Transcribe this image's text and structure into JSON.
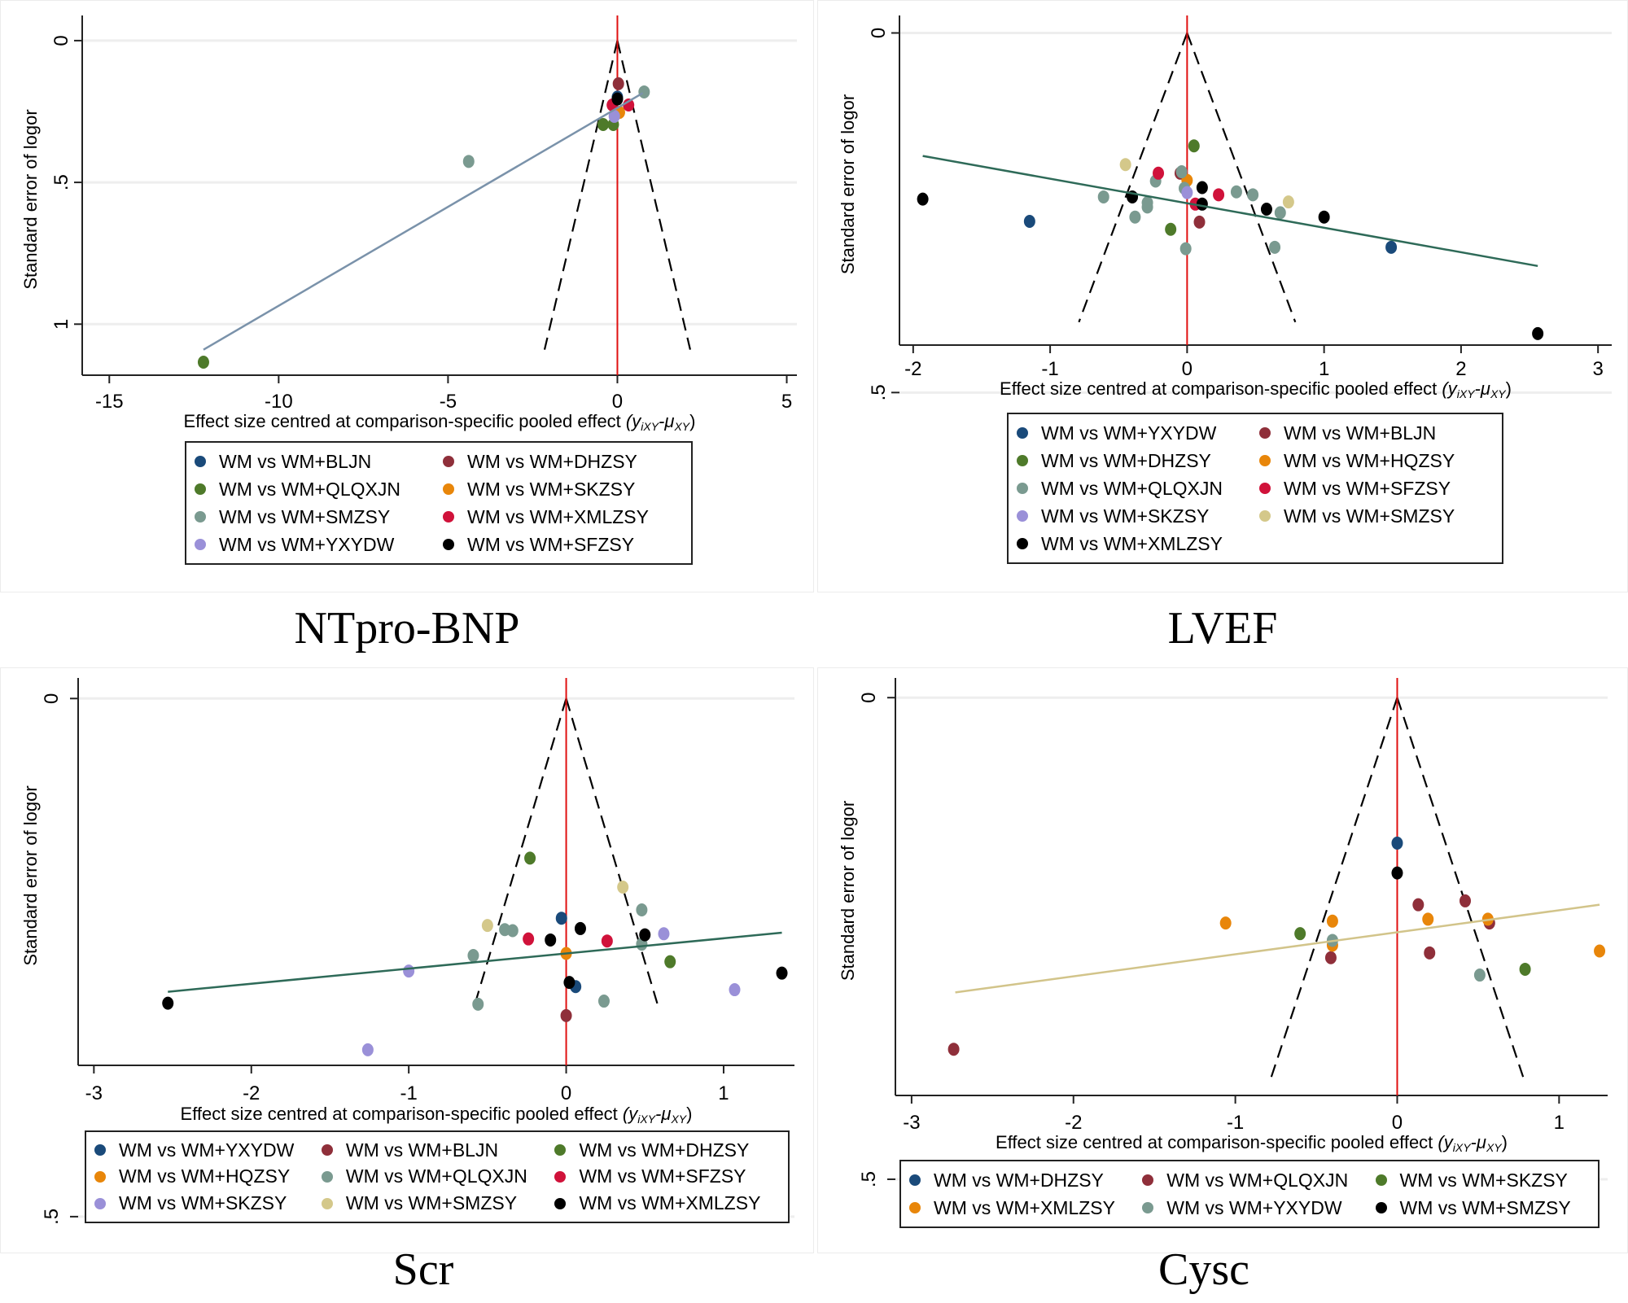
{
  "figure": {
    "captions": [
      "NTpro-BNP",
      "LVEF",
      "Scr",
      "Cysc"
    ]
  },
  "colors": {
    "navy": "#1a4a7a",
    "maroon": "#8f2f3a",
    "olive": "#4e7a2a",
    "orange": "#e8860a",
    "gray": "#7a9a90",
    "crimson": "#d0123a",
    "lavender": "#9a90d8",
    "black": "#000000",
    "khaki": "#d4c88a",
    "null_line": "#e01010",
    "reg_blue": "#7a92aa",
    "reg_green": "#2e6a58",
    "reg_khaki": "#d2c48a"
  },
  "chart_data": [
    {
      "id": "ntprobnp",
      "type": "scatter",
      "title": "NTpro-BNP",
      "xlabel": "Effect size centred at comparison-specific pooled effect",
      "xlabel_math": "(y",
      "xlabel_sub1": "iXY",
      "xlabel_mid": "-μ",
      "xlabel_sub2": "XY",
      "xlabel_end": ")",
      "ylabel": "Standard error of logor",
      "xlim": [
        -15.8,
        5.3
      ],
      "ylim": [
        -0.06,
        1.18
      ],
      "y_reversed": true,
      "xticks": [
        -15,
        -10,
        -5,
        0,
        5
      ],
      "xtick_labels": [
        "-15",
        "-10",
        "-5",
        "0",
        "5"
      ],
      "yticks": [
        0,
        0.5,
        1
      ],
      "ytick_labels": [
        "0",
        ".5",
        "1"
      ],
      "grid": true,
      "null_line_x": 0,
      "funnel": {
        "apex": [
          0,
          0
        ],
        "bottom_y": 1.09,
        "half_width": 2.15
      },
      "regression": {
        "x": [
          -12.22,
          0.75
        ],
        "y": [
          1.09,
          0.185
        ],
        "color_key": "reg_blue"
      },
      "legend_columns": 2,
      "legend_placement": "bottom",
      "series": [
        {
          "name": "WM vs WM+BLJN",
          "color_key": "navy",
          "points": [
            [
              0.0,
              0.199
            ]
          ]
        },
        {
          "name": "WM vs WM+DHZSY",
          "color_key": "maroon",
          "points": [
            [
              0.03,
              0.152
            ]
          ]
        },
        {
          "name": "WM vs WM+QLQXJN",
          "color_key": "olive",
          "points": [
            [
              -12.22,
              1.134
            ],
            [
              -0.42,
              0.296
            ],
            [
              -0.12,
              0.296
            ]
          ]
        },
        {
          "name": "WM vs WM+SKZSY",
          "color_key": "orange",
          "points": [
            [
              0.06,
              0.253
            ]
          ]
        },
        {
          "name": "WM vs WM+SMZSY",
          "color_key": "gray",
          "points": [
            [
              -4.39,
              0.426
            ],
            [
              0.79,
              0.181
            ]
          ]
        },
        {
          "name": "WM vs WM+XMLZSY",
          "color_key": "crimson",
          "points": [
            [
              -0.15,
              0.227
            ],
            [
              0.33,
              0.227
            ]
          ]
        },
        {
          "name": "WM vs WM+YXYDW",
          "color_key": "lavender",
          "points": [
            [
              -0.09,
              0.267
            ]
          ]
        },
        {
          "name": "WM vs WM+SFZSY",
          "color_key": "black",
          "points": [
            [
              0.0,
              0.206
            ]
          ]
        }
      ]
    },
    {
      "id": "lvef",
      "type": "scatter",
      "title": "LVEF",
      "xlabel": "Effect size centred at comparison-specific pooled effect",
      "xlabel_math": "(y",
      "xlabel_sub1": "iXY",
      "xlabel_mid": "-μ",
      "xlabel_sub2": "XY",
      "xlabel_end": ")",
      "ylabel": "Standard error of logor",
      "xlim": [
        -2.1,
        3.1
      ],
      "ylim": [
        -0.013,
        0.434
      ],
      "y_reversed": true,
      "xticks": [
        -2,
        -1,
        0,
        1,
        2,
        3
      ],
      "xtick_labels": [
        "-2",
        "-1",
        "0",
        "1",
        "2",
        "3"
      ],
      "yticks": [
        0,
        0.5
      ],
      "ytick_labels": [
        "0",
        ".5"
      ],
      "grid": true,
      "null_line_x": 0,
      "funnel": {
        "apex": [
          0,
          0
        ],
        "bottom_y": 0.402,
        "half_width": 0.79
      },
      "regression": {
        "x": [
          -1.93,
          2.56
        ],
        "y": [
          0.171,
          0.324
        ],
        "color_key": "reg_green"
      },
      "legend_columns": 2,
      "legend_placement": "bottom",
      "series": [
        {
          "name": "WM vs WM+YXYDW",
          "color_key": "navy",
          "points": [
            [
              -1.15,
              0.262
            ],
            [
              1.49,
              0.298
            ]
          ]
        },
        {
          "name": "WM vs WM+BLJN",
          "color_key": "maroon",
          "points": [
            [
              -0.05,
              0.195
            ],
            [
              0.09,
              0.263
            ]
          ]
        },
        {
          "name": "WM vs WM+DHZSY",
          "color_key": "olive",
          "points": [
            [
              0.05,
              0.157
            ],
            [
              -0.12,
              0.273
            ]
          ]
        },
        {
          "name": "WM vs WM+HQZSY",
          "color_key": "orange",
          "points": [
            [
              0.0,
              0.205
            ]
          ]
        },
        {
          "name": "WM vs WM+QLQXJN",
          "color_key": "gray",
          "points": [
            [
              -0.04,
              0.193
            ],
            [
              -0.23,
              0.206
            ],
            [
              -0.61,
              0.228
            ],
            [
              -0.29,
              0.236
            ],
            [
              -0.29,
              0.242
            ],
            [
              -0.38,
              0.256
            ],
            [
              -0.02,
              0.216
            ],
            [
              0.36,
              0.221
            ],
            [
              0.48,
              0.225
            ],
            [
              0.68,
              0.25
            ],
            [
              -0.01,
              0.3
            ],
            [
              0.64,
              0.298
            ]
          ]
        },
        {
          "name": "WM vs WM+SFZSY",
          "color_key": "crimson",
          "points": [
            [
              -0.21,
              0.195
            ],
            [
              0.23,
              0.225
            ],
            [
              0.06,
              0.238
            ]
          ]
        },
        {
          "name": "WM vs WM+SKZSY",
          "color_key": "lavender",
          "points": [
            [
              0.0,
              0.222
            ]
          ]
        },
        {
          "name": "WM vs WM+SMZSY",
          "color_key": "khaki",
          "points": [
            [
              -0.45,
              0.183
            ],
            [
              0.74,
              0.235
            ]
          ]
        },
        {
          "name": "WM vs WM+XMLZSY",
          "color_key": "black",
          "points": [
            [
              -1.93,
              0.231
            ],
            [
              -0.4,
              0.228
            ],
            [
              0.11,
              0.215
            ],
            [
              0.11,
              0.238
            ],
            [
              0.58,
              0.245
            ],
            [
              1.0,
              0.256
            ],
            [
              2.56,
              0.418
            ]
          ]
        }
      ]
    },
    {
      "id": "scr",
      "type": "scatter",
      "title": "Scr",
      "xlabel": "Effect size centred at comparison-specific pooled effect",
      "xlabel_math": "(y",
      "xlabel_sub1": "iXY",
      "xlabel_mid": "-μ",
      "xlabel_sub2": "XY",
      "xlabel_end": ")",
      "ylabel": "Standard error of logor",
      "xlim": [
        -3.1,
        1.45
      ],
      "ylim": [
        -0.012,
        0.354
      ],
      "y_reversed": true,
      "xticks": [
        -3,
        -2,
        -1,
        0,
        1
      ],
      "xtick_labels": [
        "-3",
        "-2",
        "-1",
        "0",
        "1"
      ],
      "yticks": [
        0,
        0.5
      ],
      "ytick_labels": [
        "0",
        ".5"
      ],
      "grid": true,
      "null_line_x": 0,
      "funnel": {
        "apex": [
          0,
          0
        ],
        "bottom_y": 0.295,
        "half_width": 0.58
      },
      "regression": {
        "x": [
          -2.53,
          1.37
        ],
        "y": [
          0.283,
          0.226
        ],
        "color_key": "reg_green"
      },
      "legend_columns": 3,
      "legend_placement": "bottom",
      "series": [
        {
          "name": "WM vs WM+YXYDW",
          "color_key": "navy",
          "points": [
            [
              -0.03,
              0.212
            ],
            [
              0.06,
              0.278
            ]
          ]
        },
        {
          "name": "WM vs WM+BLJN",
          "color_key": "maroon",
          "points": [
            [
              0.0,
              0.306
            ]
          ]
        },
        {
          "name": "WM vs WM+DHZSY",
          "color_key": "olive",
          "points": [
            [
              -0.23,
              0.154
            ],
            [
              0.66,
              0.254
            ]
          ]
        },
        {
          "name": "WM vs WM+HQZSY",
          "color_key": "orange",
          "points": [
            [
              0.0,
              0.246
            ]
          ]
        },
        {
          "name": "WM vs WM+QLQXJN",
          "color_key": "gray",
          "points": [
            [
              0.48,
              0.204
            ],
            [
              -0.39,
              0.223
            ],
            [
              -0.34,
              0.224
            ],
            [
              -0.59,
              0.248
            ],
            [
              0.48,
              0.237
            ],
            [
              -0.56,
              0.295
            ],
            [
              0.24,
              0.292
            ]
          ]
        },
        {
          "name": "WM vs WM+SFZSY",
          "color_key": "crimson",
          "points": [
            [
              -0.24,
              0.232
            ],
            [
              0.26,
              0.234
            ]
          ]
        },
        {
          "name": "WM vs WM+SKZSY",
          "color_key": "lavender",
          "points": [
            [
              -1.0,
              0.263
            ],
            [
              0.62,
              0.227
            ],
            [
              1.07,
              0.281
            ],
            [
              -1.26,
              0.339
            ]
          ]
        },
        {
          "name": "WM vs WM+SMZSY",
          "color_key": "khaki",
          "points": [
            [
              -0.5,
              0.219
            ],
            [
              0.36,
              0.182
            ]
          ]
        },
        {
          "name": "WM vs WM+XMLZSY",
          "color_key": "black",
          "points": [
            [
              -2.53,
              0.294
            ],
            [
              -0.1,
              0.233
            ],
            [
              0.09,
              0.222
            ],
            [
              0.5,
              0.228
            ],
            [
              0.02,
              0.274
            ],
            [
              1.37,
              0.265
            ]
          ]
        }
      ]
    },
    {
      "id": "cysc",
      "type": "scatter",
      "title": "Cysc",
      "xlabel": "Effect size centred at comparison-specific pooled effect",
      "xlabel_math": "(y",
      "xlabel_sub1": "iXY",
      "xlabel_mid": "-μ",
      "xlabel_sub2": "XY",
      "xlabel_end": ")",
      "ylabel": "Standard error of logor",
      "xlim": [
        -3.1,
        1.3
      ],
      "ylim": [
        -0.012,
        0.413
      ],
      "y_reversed": true,
      "xticks": [
        -3,
        -2,
        -1,
        0,
        1
      ],
      "xtick_labels": [
        "-3",
        "-2",
        "-1",
        "0",
        "1"
      ],
      "yticks": [
        0,
        0.5
      ],
      "ytick_labels": [
        "0",
        ".5"
      ],
      "grid": true,
      "null_line_x": 0,
      "funnel": {
        "apex": [
          0,
          0
        ],
        "bottom_y": 0.4,
        "half_width": 0.79
      },
      "regression": {
        "x": [
          -2.73,
          1.25
        ],
        "y": [
          0.306,
          0.215
        ],
        "color_key": "reg_khaki"
      },
      "legend_columns": 3,
      "legend_placement": "bottom",
      "series": [
        {
          "name": "WM vs WM+DHZSY",
          "color_key": "navy",
          "points": [
            [
              0.0,
              0.151
            ]
          ]
        },
        {
          "name": "WM vs WM+QLQXJN",
          "color_key": "maroon",
          "points": [
            [
              0.13,
              0.215
            ],
            [
              0.42,
              0.211
            ],
            [
              0.57,
              0.234
            ],
            [
              0.2,
              0.265
            ],
            [
              -0.41,
              0.27
            ],
            [
              -2.74,
              0.365
            ]
          ]
        },
        {
          "name": "WM vs WM+SKZSY",
          "color_key": "olive",
          "points": [
            [
              -0.6,
              0.245
            ],
            [
              0.79,
              0.282
            ]
          ]
        },
        {
          "name": "WM vs WM+XMLZSY",
          "color_key": "orange",
          "points": [
            [
              -1.06,
              0.234
            ],
            [
              -0.4,
              0.232
            ],
            [
              -0.4,
              0.257
            ],
            [
              0.19,
              0.23
            ],
            [
              0.56,
              0.23
            ],
            [
              1.25,
              0.263
            ]
          ]
        },
        {
          "name": "WM vs WM+YXYDW",
          "color_key": "gray",
          "points": [
            [
              -0.4,
              0.252
            ],
            [
              0.51,
              0.288
            ]
          ]
        },
        {
          "name": "WM vs WM+SMZSY",
          "color_key": "black",
          "points": [
            [
              0.0,
              0.182
            ]
          ]
        }
      ]
    }
  ]
}
